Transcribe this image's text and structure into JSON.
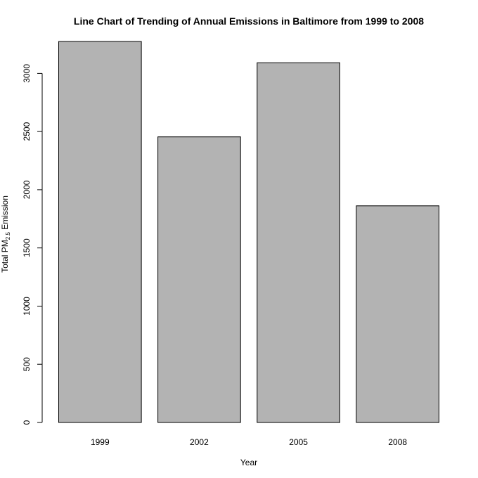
{
  "chart_data": {
    "type": "bar",
    "title": "Line Chart of Trending of Annual Emissions in Baltimore from 1999 to 2008",
    "xlabel": "Year",
    "ylabel": {
      "prefix": "Total PM",
      "subscript": "2.5",
      "suffix": " Emission"
    },
    "categories": [
      "1999",
      "2002",
      "2005",
      "2008"
    ],
    "values": [
      3274,
      2454,
      3091,
      1862
    ],
    "ylim": [
      0,
      3274
    ],
    "yticks": [
      0,
      500,
      1000,
      1500,
      2000,
      2500,
      3000
    ],
    "ytick_labels": [
      "0",
      "500",
      "1000",
      "1500",
      "2000",
      "2500",
      "3000"
    ],
    "grid": false,
    "legend": "none",
    "bar_color": "#b3b3b3",
    "bar_stroke": "#000000"
  }
}
